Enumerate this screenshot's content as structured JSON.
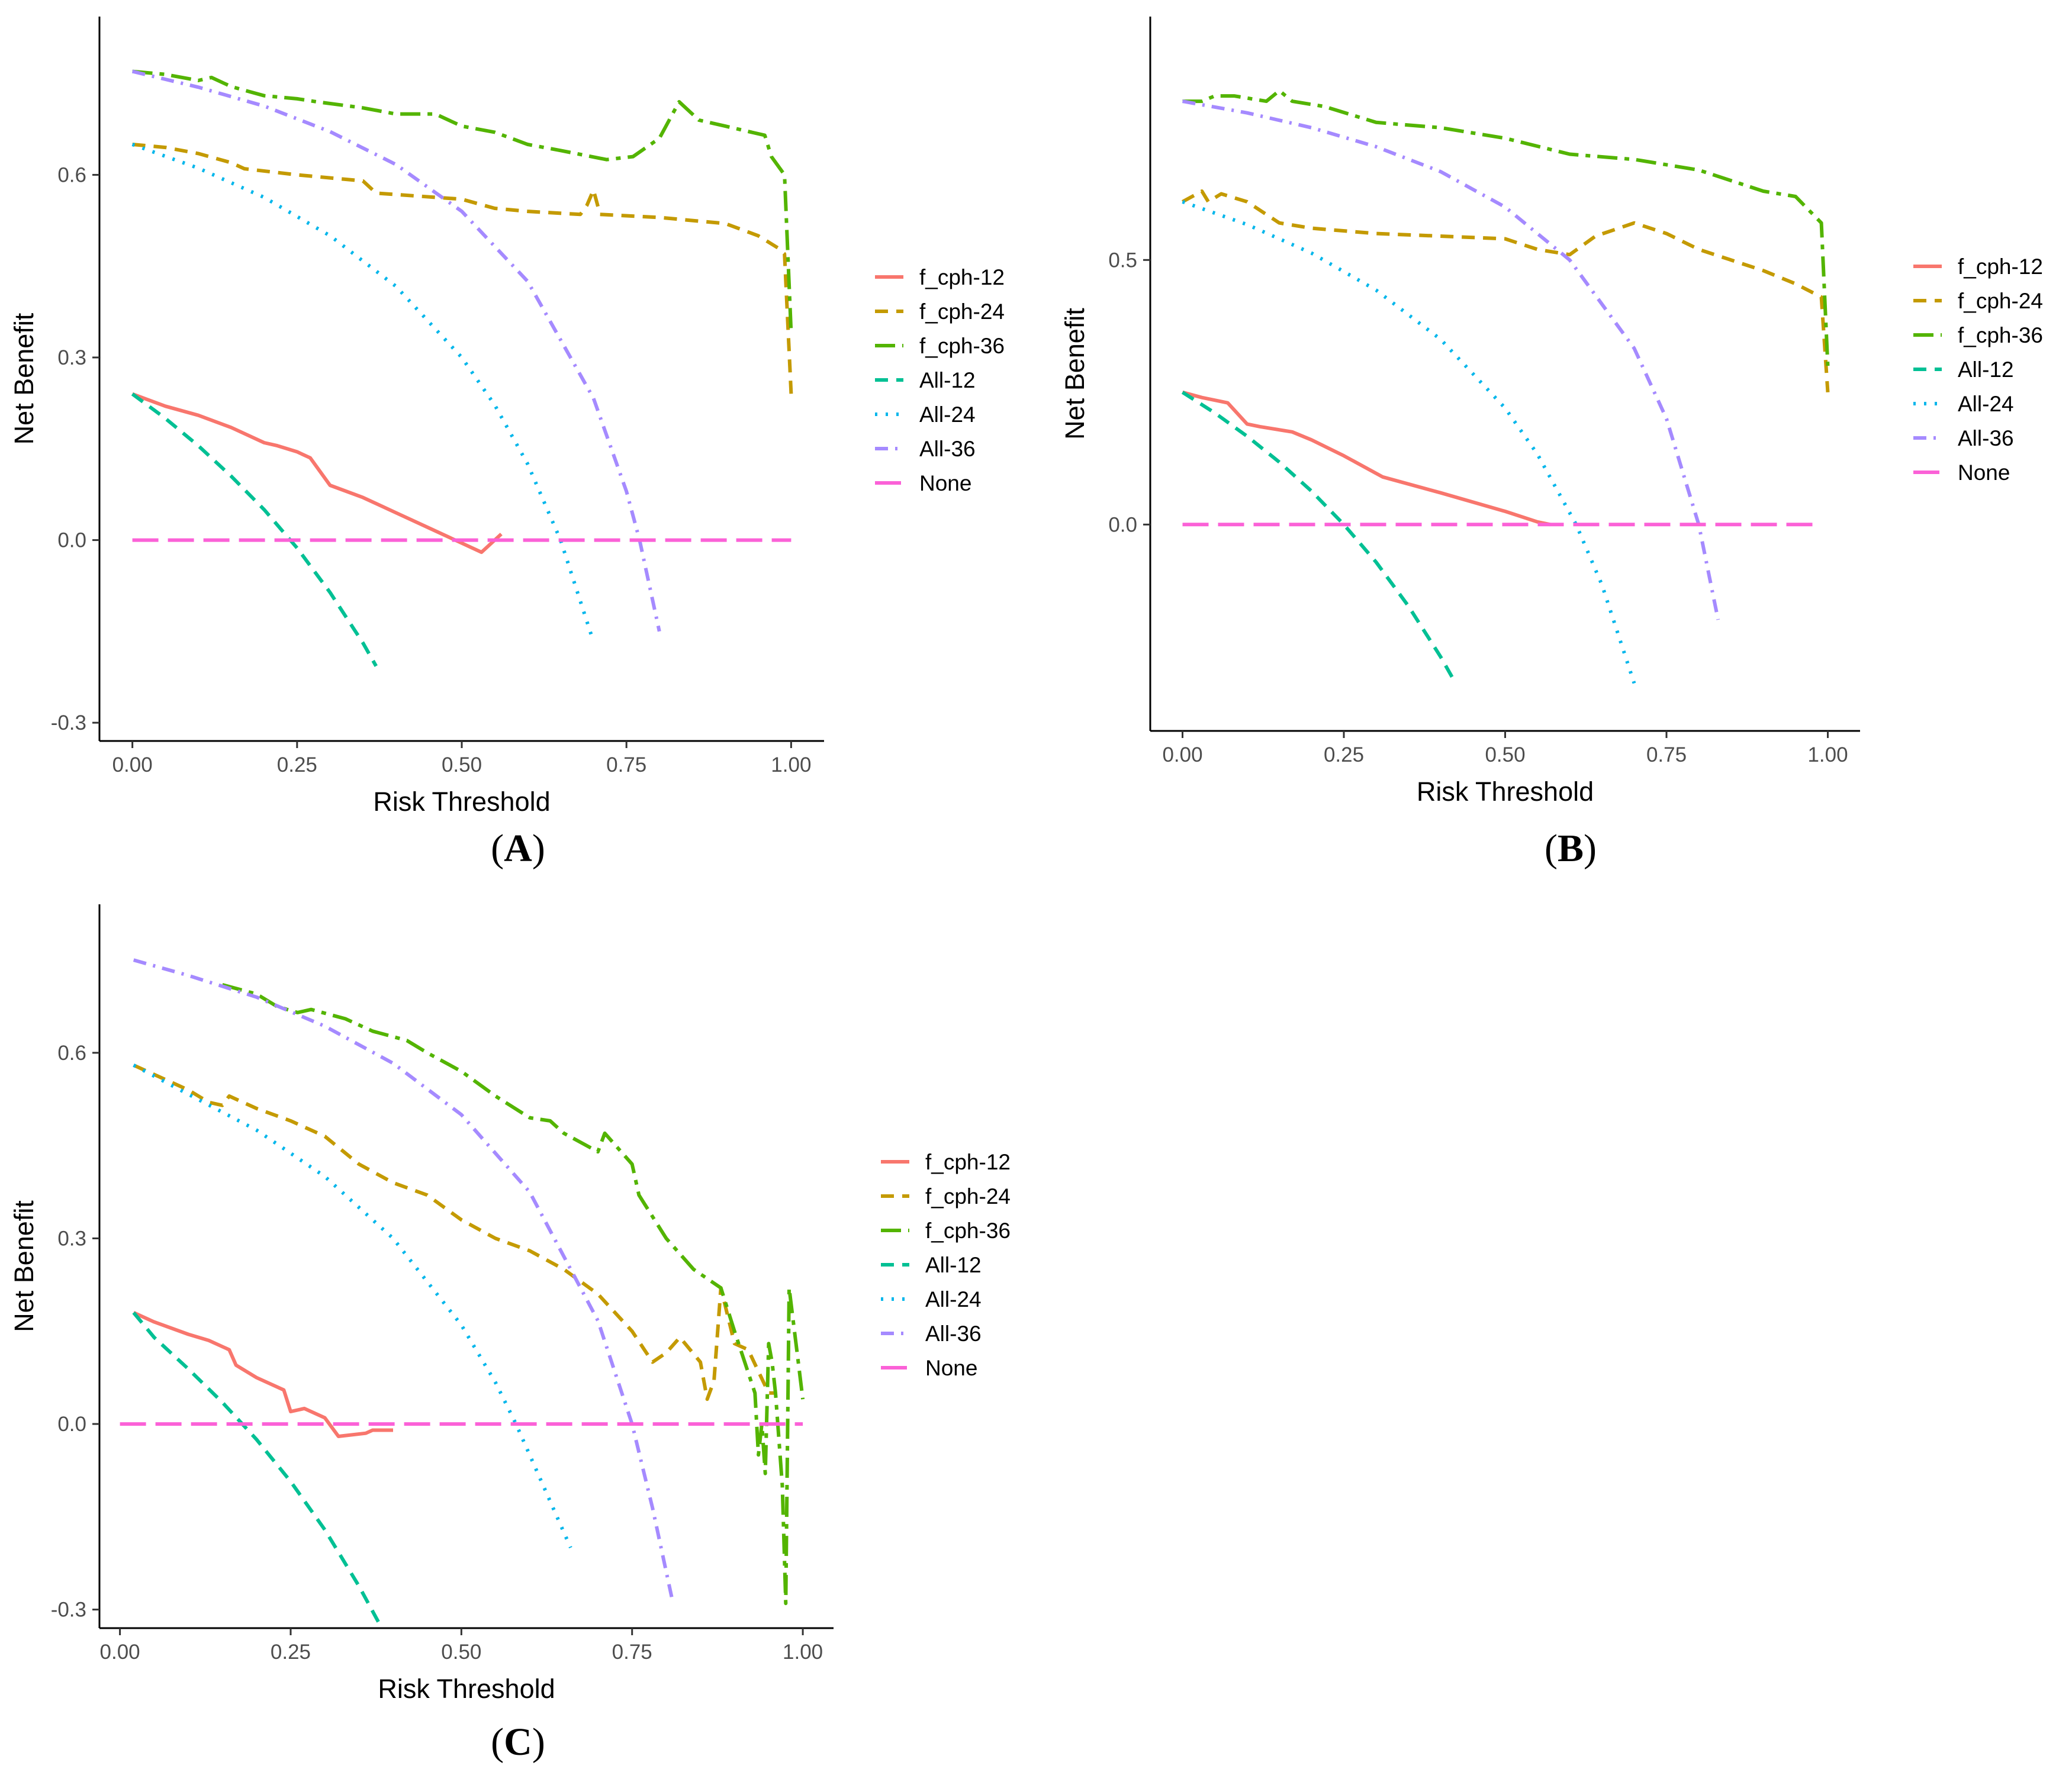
{
  "chart_data": [
    {
      "type": "line",
      "panel": "A",
      "caption": {
        "open": "(",
        "letter": "A",
        "close": ")"
      },
      "xlabel": "Risk Threshold",
      "ylabel": "Net Benefit",
      "xlim": [
        -0.05,
        1.05
      ],
      "ylim": [
        -0.33,
        0.86
      ],
      "xticks": [
        0,
        0.25,
        0.5,
        0.75,
        1
      ],
      "xtick_labels": [
        "0.00",
        "0.25",
        "0.50",
        "0.75",
        "1.00"
      ],
      "yticks": [
        -0.3,
        0,
        0.3,
        0.6
      ],
      "ytick_labels": [
        "-0.3",
        "0.0",
        "0.3",
        "0.6"
      ],
      "legend": [
        "f_cph-12",
        "f_cph-24",
        "f_cph-36",
        "All-12",
        "All-24",
        "All-36",
        "None"
      ],
      "series": [
        {
          "name": "f_cph-12",
          "color": "#F8766D",
          "dash": "solid",
          "x": [
            0.0,
            0.05,
            0.1,
            0.15,
            0.2,
            0.22,
            0.25,
            0.27,
            0.3,
            0.35,
            0.4,
            0.45,
            0.5,
            0.53,
            0.56
          ],
          "y": [
            0.24,
            0.22,
            0.205,
            0.185,
            0.16,
            0.155,
            0.145,
            0.135,
            0.09,
            0.07,
            0.045,
            0.02,
            -0.005,
            -0.02,
            0.01
          ]
        },
        {
          "name": "f_cph-24",
          "color": "#C49A00",
          "dash": "dash",
          "x": [
            0.0,
            0.05,
            0.1,
            0.15,
            0.17,
            0.25,
            0.35,
            0.37,
            0.5,
            0.55,
            0.6,
            0.68,
            0.69,
            0.7,
            0.71,
            0.8,
            0.85,
            0.9,
            0.95,
            0.98,
            0.99,
            1.0
          ],
          "y": [
            0.65,
            0.645,
            0.635,
            0.62,
            0.61,
            0.6,
            0.59,
            0.57,
            0.56,
            0.545,
            0.54,
            0.535,
            0.55,
            0.575,
            0.535,
            0.53,
            0.525,
            0.52,
            0.5,
            0.48,
            0.47,
            0.24
          ]
        },
        {
          "name": "f_cph-36",
          "color": "#53B400",
          "dash": "longdash-dot",
          "x": [
            0.0,
            0.05,
            0.1,
            0.12,
            0.15,
            0.2,
            0.25,
            0.28,
            0.35,
            0.4,
            0.46,
            0.48,
            0.5,
            0.55,
            0.6,
            0.65,
            0.72,
            0.76,
            0.8,
            0.83,
            0.86,
            0.9,
            0.96,
            0.97,
            0.99,
            1.0
          ],
          "y": [
            0.77,
            0.765,
            0.755,
            0.76,
            0.745,
            0.73,
            0.725,
            0.72,
            0.71,
            0.7,
            0.7,
            0.69,
            0.68,
            0.67,
            0.65,
            0.64,
            0.625,
            0.63,
            0.66,
            0.72,
            0.69,
            0.68,
            0.665,
            0.63,
            0.6,
            0.34
          ]
        },
        {
          "name": "All-12",
          "color": "#00C094",
          "dash": "dash",
          "x": [
            0.0,
            0.05,
            0.1,
            0.15,
            0.2,
            0.25,
            0.3,
            0.35,
            0.37
          ],
          "y": [
            0.24,
            0.2,
            0.155,
            0.105,
            0.05,
            -0.013,
            -0.086,
            -0.169,
            -0.207
          ]
        },
        {
          "name": "All-24",
          "color": "#00B6EB",
          "dash": "dot",
          "x": [
            0.0,
            0.1,
            0.2,
            0.3,
            0.4,
            0.5,
            0.55,
            0.6,
            0.65,
            0.7
          ],
          "y": [
            0.65,
            0.611,
            0.563,
            0.5,
            0.417,
            0.3,
            0.222,
            0.125,
            0.0,
            -0.167
          ]
        },
        {
          "name": "All-36",
          "color": "#A58AFF",
          "dash": "dashdot",
          "x": [
            0.0,
            0.1,
            0.2,
            0.3,
            0.4,
            0.5,
            0.6,
            0.7,
            0.75,
            0.77,
            0.8
          ],
          "y": [
            0.77,
            0.744,
            0.713,
            0.671,
            0.617,
            0.54,
            0.425,
            0.233,
            0.08,
            0.0,
            -0.15
          ]
        },
        {
          "name": "None",
          "color": "#FB61D7",
          "dash": "longdash",
          "x": [
            0.0,
            1.0
          ],
          "y": [
            0.0,
            0.0
          ]
        }
      ]
    },
    {
      "type": "line",
      "panel": "B",
      "caption": {
        "open": "(",
        "letter": "B",
        "close": ")"
      },
      "xlabel": "Risk Threshold",
      "ylabel": "Net Benefit",
      "xlim": [
        -0.05,
        1.05
      ],
      "ylim": [
        -0.39,
        0.96
      ],
      "xticks": [
        0,
        0.25,
        0.5,
        0.75,
        1
      ],
      "xtick_labels": [
        "0.00",
        "0.25",
        "0.50",
        "0.75",
        "1.00"
      ],
      "yticks": [
        0,
        0.5
      ],
      "ytick_labels": [
        "0.0",
        "0.5"
      ],
      "legend": [
        "f_cph-12",
        "f_cph-24",
        "f_cph-36",
        "All-12",
        "All-24",
        "All-36",
        "None"
      ],
      "series": [
        {
          "name": "f_cph-12",
          "color": "#F8766D",
          "dash": "solid",
          "x": [
            0.0,
            0.03,
            0.07,
            0.1,
            0.12,
            0.17,
            0.2,
            0.25,
            0.31,
            0.4,
            0.5,
            0.55,
            0.57
          ],
          "y": [
            0.25,
            0.24,
            0.23,
            0.19,
            0.185,
            0.175,
            0.16,
            0.13,
            0.09,
            0.06,
            0.025,
            0.005,
            0.0
          ]
        },
        {
          "name": "f_cph-24",
          "color": "#C49A00",
          "dash": "dash",
          "x": [
            0.0,
            0.03,
            0.04,
            0.06,
            0.1,
            0.15,
            0.2,
            0.3,
            0.4,
            0.5,
            0.55,
            0.6,
            0.64,
            0.7,
            0.75,
            0.8,
            0.9,
            0.95,
            0.99,
            1.0
          ],
          "y": [
            0.61,
            0.63,
            0.61,
            0.625,
            0.61,
            0.57,
            0.56,
            0.55,
            0.545,
            0.54,
            0.52,
            0.51,
            0.545,
            0.57,
            0.55,
            0.52,
            0.48,
            0.455,
            0.43,
            0.25
          ]
        },
        {
          "name": "f_cph-36",
          "color": "#53B400",
          "dash": "longdash-dot",
          "x": [
            0.0,
            0.03,
            0.05,
            0.08,
            0.13,
            0.15,
            0.17,
            0.22,
            0.3,
            0.4,
            0.5,
            0.6,
            0.7,
            0.8,
            0.9,
            0.95,
            0.99,
            1.0
          ],
          "y": [
            0.8,
            0.8,
            0.81,
            0.81,
            0.8,
            0.82,
            0.8,
            0.79,
            0.76,
            0.75,
            0.73,
            0.7,
            0.69,
            0.67,
            0.63,
            0.62,
            0.57,
            0.3
          ]
        },
        {
          "name": "All-12",
          "color": "#00C094",
          "dash": "dash",
          "x": [
            0.0,
            0.05,
            0.1,
            0.15,
            0.2,
            0.25,
            0.3,
            0.35,
            0.4,
            0.42
          ],
          "y": [
            0.25,
            0.211,
            0.167,
            0.118,
            0.063,
            0.0,
            -0.071,
            -0.154,
            -0.25,
            -0.293
          ]
        },
        {
          "name": "All-24",
          "color": "#00B6EB",
          "dash": "dot",
          "x": [
            0.0,
            0.1,
            0.2,
            0.3,
            0.4,
            0.5,
            0.55,
            0.61,
            0.65,
            0.7
          ],
          "y": [
            0.61,
            0.567,
            0.513,
            0.443,
            0.35,
            0.22,
            0.133,
            0.0,
            -0.114,
            -0.3
          ]
        },
        {
          "name": "All-36",
          "color": "#A58AFF",
          "dash": "dashdot",
          "x": [
            0.0,
            0.1,
            0.2,
            0.3,
            0.4,
            0.5,
            0.6,
            0.7,
            0.75,
            0.8,
            0.83
          ],
          "y": [
            0.8,
            0.778,
            0.75,
            0.714,
            0.667,
            0.6,
            0.5,
            0.333,
            0.2,
            0.0,
            -0.18
          ]
        },
        {
          "name": "None",
          "color": "#FB61D7",
          "dash": "longdash",
          "x": [
            0.0,
            0.98
          ],
          "y": [
            0.0,
            0.0
          ]
        }
      ]
    },
    {
      "type": "line",
      "panel": "C",
      "caption": {
        "open": "(",
        "letter": "C",
        "close": ")"
      },
      "xlabel": "Risk Threshold",
      "ylabel": "Net Benefit",
      "xlim": [
        -0.03,
        1.045
      ],
      "ylim": [
        -0.33,
        0.84
      ],
      "xticks": [
        0,
        0.25,
        0.5,
        0.75,
        1
      ],
      "xtick_labels": [
        "0.00",
        "0.25",
        "0.50",
        "0.75",
        "1.00"
      ],
      "yticks": [
        -0.3,
        0,
        0.3,
        0.6
      ],
      "ytick_labels": [
        "-0.3",
        "0.0",
        "0.3",
        "0.6"
      ],
      "legend": [
        "f_cph-12",
        "f_cph-24",
        "f_cph-36",
        "All-12",
        "All-24",
        "All-36",
        "None"
      ],
      "series": [
        {
          "name": "f_cph-12",
          "color": "#F8766D",
          "dash": "solid",
          "x": [
            0.02,
            0.05,
            0.1,
            0.13,
            0.16,
            0.17,
            0.2,
            0.24,
            0.25,
            0.27,
            0.3,
            0.32,
            0.36,
            0.37,
            0.4
          ],
          "y": [
            0.18,
            0.165,
            0.145,
            0.135,
            0.12,
            0.095,
            0.075,
            0.055,
            0.02,
            0.025,
            0.01,
            -0.02,
            -0.015,
            -0.01,
            -0.01
          ]
        },
        {
          "name": "f_cph-24",
          "color": "#C49A00",
          "dash": "dash",
          "x": [
            0.02,
            0.05,
            0.1,
            0.13,
            0.15,
            0.16,
            0.2,
            0.25,
            0.3,
            0.35,
            0.4,
            0.45,
            0.5,
            0.55,
            0.6,
            0.65,
            0.7,
            0.75,
            0.78,
            0.8,
            0.82,
            0.85,
            0.86,
            0.87,
            0.88,
            0.9,
            0.92,
            0.95,
            0.96
          ],
          "y": [
            0.58,
            0.565,
            0.54,
            0.52,
            0.515,
            0.53,
            0.51,
            0.49,
            0.465,
            0.42,
            0.39,
            0.37,
            0.33,
            0.3,
            0.28,
            0.25,
            0.21,
            0.15,
            0.1,
            0.115,
            0.14,
            0.1,
            0.04,
            0.07,
            0.22,
            0.13,
            0.12,
            0.05,
            0.05
          ]
        },
        {
          "name": "f_cph-36",
          "color": "#53B400",
          "dash": "longdash-dot",
          "x": [
            0.15,
            0.2,
            0.23,
            0.26,
            0.28,
            0.33,
            0.37,
            0.42,
            0.45,
            0.5,
            0.55,
            0.6,
            0.63,
            0.65,
            0.7,
            0.71,
            0.75,
            0.76,
            0.8,
            0.84,
            0.88,
            0.9,
            0.93,
            0.935,
            0.94,
            0.945,
            0.95,
            0.955,
            0.96,
            0.97,
            0.975,
            0.98,
            0.99,
            1.0
          ],
          "y": [
            0.71,
            0.695,
            0.675,
            0.665,
            0.67,
            0.655,
            0.635,
            0.62,
            0.6,
            0.57,
            0.53,
            0.495,
            0.49,
            0.47,
            0.44,
            0.47,
            0.42,
            0.37,
            0.3,
            0.25,
            0.22,
            0.15,
            0.05,
            -0.05,
            0.0,
            -0.08,
            0.13,
            0.1,
            0.05,
            -0.1,
            -0.29,
            0.22,
            0.13,
            0.04
          ]
        },
        {
          "name": "All-12",
          "color": "#00C094",
          "dash": "dash",
          "x": [
            0.02,
            0.05,
            0.1,
            0.15,
            0.2,
            0.25,
            0.3,
            0.35,
            0.38
          ],
          "y": [
            0.18,
            0.14,
            0.089,
            0.035,
            -0.025,
            -0.093,
            -0.171,
            -0.262,
            -0.323
          ]
        },
        {
          "name": "All-24",
          "color": "#00B6EB",
          "dash": "dot",
          "x": [
            0.02,
            0.1,
            0.2,
            0.3,
            0.4,
            0.5,
            0.55,
            0.58,
            0.62,
            0.66
          ],
          "y": [
            0.58,
            0.533,
            0.475,
            0.4,
            0.3,
            0.16,
            0.067,
            0.0,
            -0.1,
            -0.2
          ]
        },
        {
          "name": "All-36",
          "color": "#A58AFF",
          "dash": "dashdot",
          "x": [
            0.02,
            0.1,
            0.2,
            0.3,
            0.4,
            0.5,
            0.6,
            0.7,
            0.75,
            0.78,
            0.81
          ],
          "y": [
            0.75,
            0.725,
            0.69,
            0.643,
            0.583,
            0.5,
            0.375,
            0.167,
            0.0,
            -0.136,
            -0.29
          ]
        },
        {
          "name": "None",
          "color": "#FB61D7",
          "dash": "longdash",
          "x": [
            0.0,
            1.0
          ],
          "y": [
            0.0,
            0.0
          ]
        }
      ]
    }
  ]
}
